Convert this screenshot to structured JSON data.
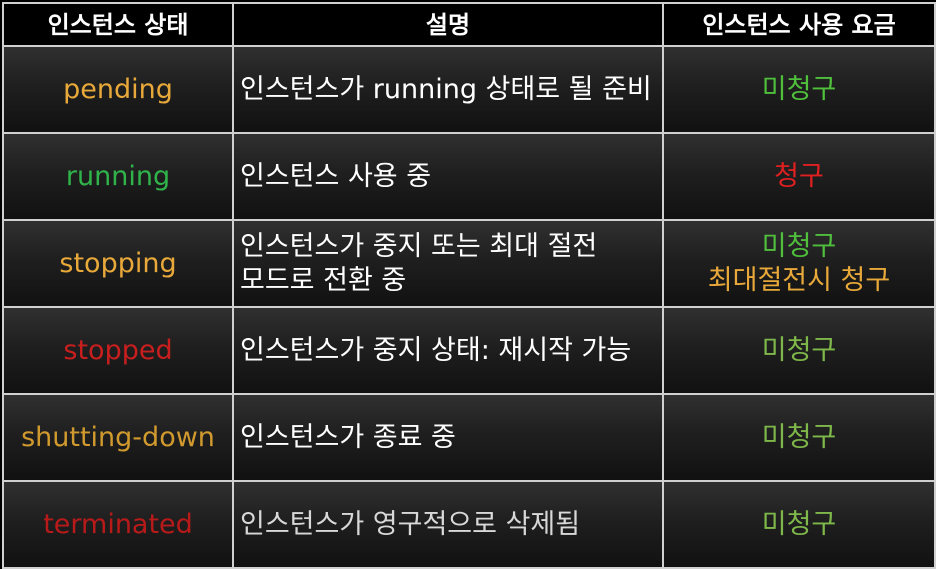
{
  "header": {
    "col_state": "인스턴스 상태",
    "col_desc": "설명",
    "col_billing": "인스턴스 사용 요금"
  },
  "rows": [
    {
      "state": "pending",
      "state_color": "#e8a93a",
      "desc": [
        "인스턴스가 running 상태로 될 준비"
      ],
      "billing": [
        {
          "text": "미청구",
          "color": "#4fbf3c"
        }
      ]
    },
    {
      "state": "running",
      "state_color": "#2fb34a",
      "desc": [
        "인스턴스 사용 중"
      ],
      "billing": [
        {
          "text": "청구",
          "color": "#e02020"
        }
      ]
    },
    {
      "state": "stopping",
      "state_color": "#e8a93a",
      "desc": [
        "인스턴스가 중지 또는 최대 절전",
        "모드로 전환 중"
      ],
      "billing": [
        {
          "text": "미청구",
          "color": "#4fbf3c"
        },
        {
          "text": "최대절전시 청구",
          "color": "#e8a93a"
        }
      ]
    },
    {
      "state": "stopped",
      "state_color": "#c81e1e",
      "desc": [
        "인스턴스가 중지 상태: 재시작 가능"
      ],
      "billing": [
        {
          "text": "미청구",
          "color": "#7fb84a"
        }
      ]
    },
    {
      "state": "shutting-down",
      "state_color": "#d19a2e",
      "desc": [
        "인스턴스가 종료 중"
      ],
      "billing": [
        {
          "text": "미청구",
          "color": "#7fb84a"
        }
      ]
    },
    {
      "state": "terminated",
      "state_color": "#b81a1a",
      "desc": [
        "인스턴스가 영구적으로 삭제됨"
      ],
      "billing": [
        {
          "text": "미청구",
          "color": "#7fb84a"
        }
      ]
    }
  ]
}
